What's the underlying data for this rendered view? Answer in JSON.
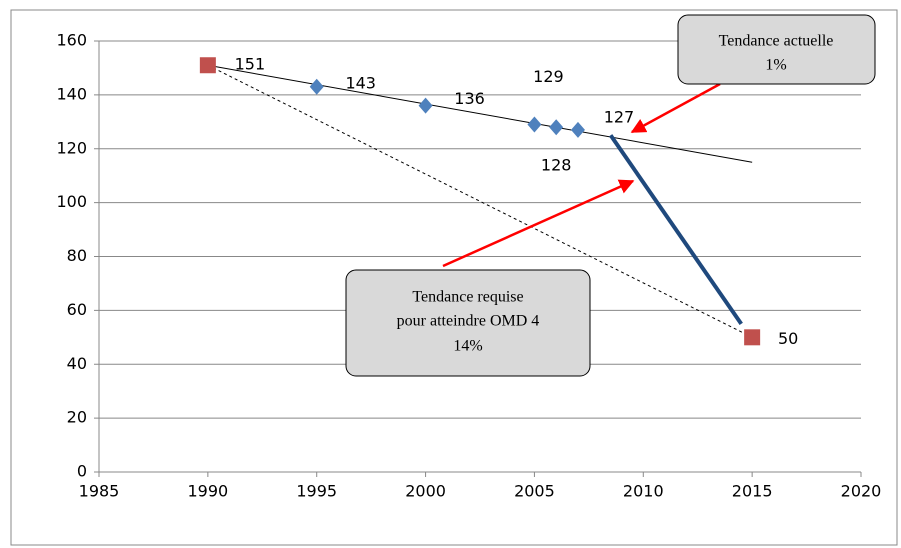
{
  "chart_data": {
    "type": "scatter",
    "xlim": [
      1985,
      2020
    ],
    "xticks": [
      1985,
      1990,
      1995,
      2000,
      2005,
      2010,
      2015,
      2020
    ],
    "ylim": [
      0,
      160
    ],
    "yticks": [
      0,
      20,
      40,
      60,
      80,
      100,
      120,
      140,
      160
    ],
    "grid": true,
    "series": [
      {
        "marker": "diamond",
        "color": "#4f81bd",
        "x": [
          1995,
          2000,
          2005,
          2006,
          2007
        ],
        "values": [
          143,
          136,
          129,
          128,
          127
        ]
      },
      {
        "marker": "square",
        "color": "#c0504d",
        "x": [
          1990,
          2015
        ],
        "values": [
          151,
          50
        ]
      }
    ],
    "lines": [
      {
        "style": "solid",
        "color": "#000000",
        "width": 1,
        "x": [
          1990,
          2015
        ],
        "values": [
          151,
          115
        ]
      },
      {
        "style": "dashed",
        "color": "#000000",
        "width": 1,
        "x": [
          1990,
          2015
        ],
        "values": [
          151,
          50
        ]
      },
      {
        "style": "solid",
        "color": "#1f497d",
        "width": 4,
        "x": [
          2008.5,
          2014.5
        ],
        "values": [
          125,
          55
        ]
      }
    ],
    "annotations": [
      {
        "lines": [
          "Tendance actuelle",
          "1%"
        ]
      },
      {
        "lines": [
          "Tendance requise",
          "pour atteindre OMD 4",
          "14%"
        ]
      }
    ]
  }
}
